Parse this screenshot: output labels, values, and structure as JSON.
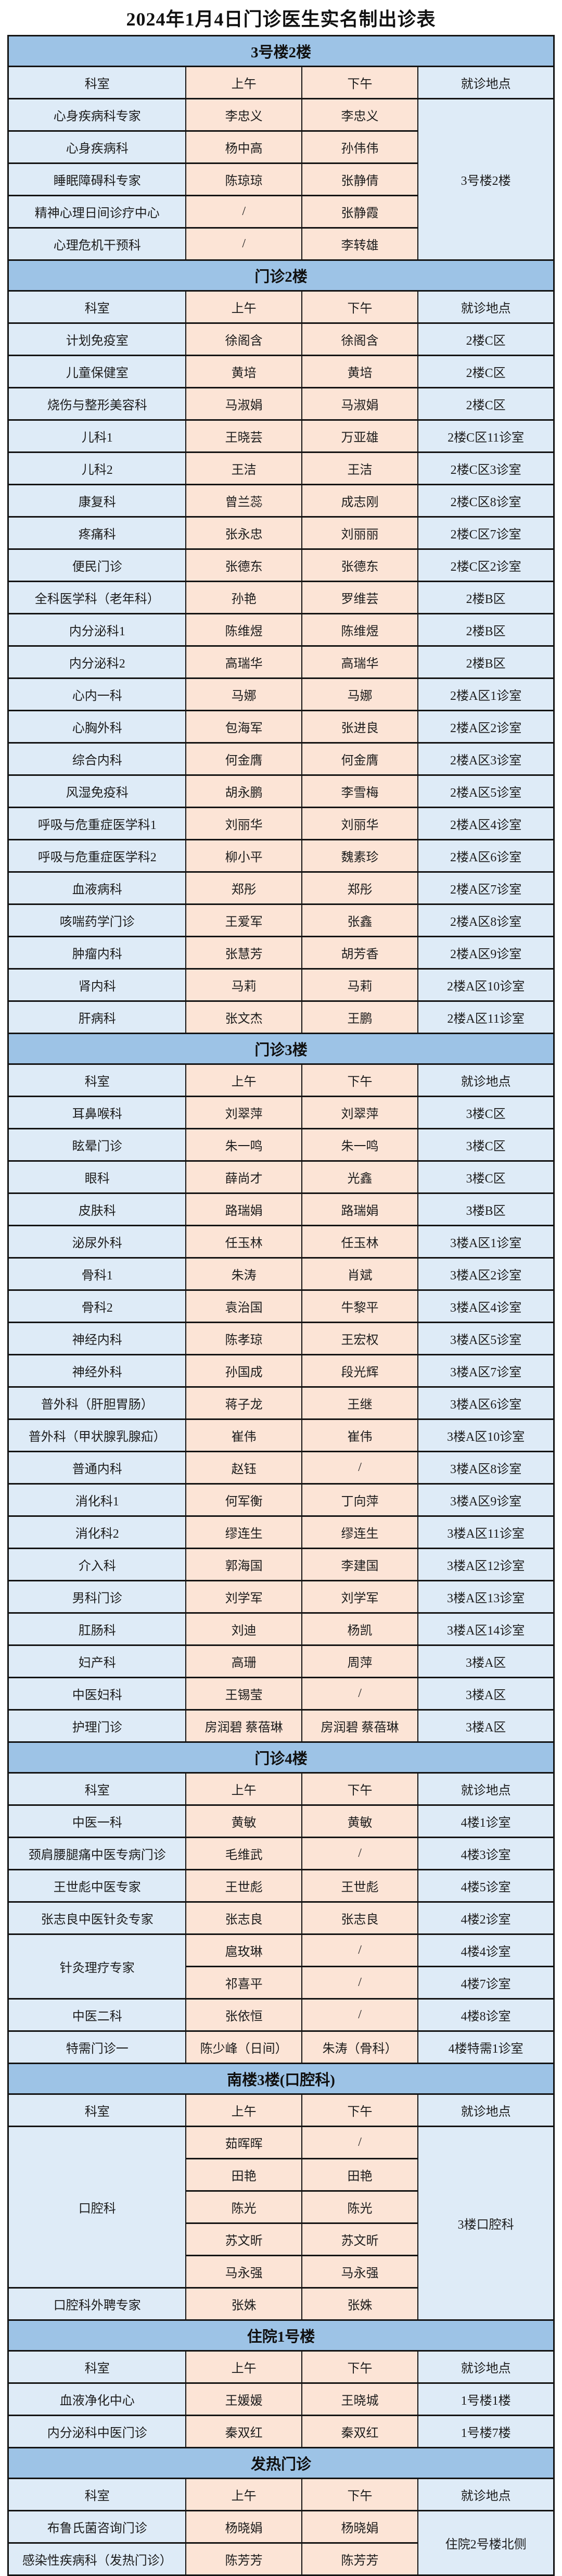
{
  "title": "2024年1月4日门诊医生实名制出诊表",
  "columns": [
    "科室",
    "上午",
    "下午",
    "就诊地点"
  ],
  "colors": {
    "section_band": "#9DC3E6",
    "dept_location_fill": "#DEEBF7",
    "doctor_fill": "#FCE4D6",
    "border": "#131313"
  },
  "sections": [
    {
      "name": "3号楼2楼",
      "rows": [
        {
          "dept": "心身疾病科专家",
          "am": "李忠义",
          "pm": "李忠义",
          "loc": "3号楼2楼",
          "loc_span": 5
        },
        {
          "dept": "心身疾病科",
          "am": "杨中高",
          "pm": "孙伟伟",
          "loc_span": 0
        },
        {
          "dept": "睡眠障碍科专家",
          "am": "陈琼琼",
          "pm": "张静倩",
          "loc_span": 0
        },
        {
          "dept": "精神心理日间诊疗中心",
          "am": "/",
          "pm": "张静霞",
          "loc_span": 0
        },
        {
          "dept": "心理危机干预科",
          "am": "/",
          "pm": "李转雄",
          "loc_span": 0
        }
      ]
    },
    {
      "name": "门诊2楼",
      "rows": [
        {
          "dept": "计划免疫室",
          "am": "徐阁含",
          "pm": "徐阁含",
          "loc": "2楼C区"
        },
        {
          "dept": "儿童保健室",
          "am": "黄培",
          "pm": "黄培",
          "loc": "2楼C区"
        },
        {
          "dept": "烧伤与整形美容科",
          "am": "马淑娟",
          "pm": "马淑娟",
          "loc": "2楼C区"
        },
        {
          "dept": "儿科1",
          "am": "王晓芸",
          "pm": "万亚雄",
          "loc": "2楼C区11诊室"
        },
        {
          "dept": "儿科2",
          "am": "王洁",
          "pm": "王洁",
          "loc": "2楼C区3诊室"
        },
        {
          "dept": "康复科",
          "am": "曾兰蕊",
          "pm": "成志刚",
          "loc": "2楼C区8诊室"
        },
        {
          "dept": "疼痛科",
          "am": "张永忠",
          "pm": "刘丽丽",
          "loc": "2楼C区7诊室"
        },
        {
          "dept": "便民门诊",
          "am": "张德东",
          "pm": "张德东",
          "loc": "2楼C区2诊室"
        },
        {
          "dept": "全科医学科（老年科）",
          "am": "孙艳",
          "pm": "罗维芸",
          "loc": "2楼B区"
        },
        {
          "dept": "内分泌科1",
          "am": "陈维煜",
          "pm": "陈维煜",
          "loc": "2楼B区"
        },
        {
          "dept": "内分泌科2",
          "am": "高瑞华",
          "pm": "高瑞华",
          "loc": "2楼B区"
        },
        {
          "dept": "心内一科",
          "am": "马娜",
          "pm": "马娜",
          "loc": "2楼A区1诊室"
        },
        {
          "dept": "心胸外科",
          "am": "包海军",
          "pm": "张进良",
          "loc": "2楼A区2诊室"
        },
        {
          "dept": "综合内科",
          "am": "何金膺",
          "pm": "何金膺",
          "loc": "2楼A区3诊室"
        },
        {
          "dept": "风湿免疫科",
          "am": "胡永鹏",
          "pm": "李雪梅",
          "loc": "2楼A区5诊室"
        },
        {
          "dept": "呼吸与危重症医学科1",
          "am": "刘丽华",
          "pm": "刘丽华",
          "loc": "2楼A区4诊室"
        },
        {
          "dept": "呼吸与危重症医学科2",
          "am": "柳小平",
          "pm": "魏素珍",
          "loc": "2楼A区6诊室"
        },
        {
          "dept": "血液病科",
          "am": "郑彤",
          "pm": "郑彤",
          "loc": "2楼A区7诊室"
        },
        {
          "dept": "咳喘药学门诊",
          "am": "王爱军",
          "pm": "张鑫",
          "loc": "2楼A区8诊室"
        },
        {
          "dept": "肿瘤内科",
          "am": "张慧芳",
          "pm": "胡芳香",
          "loc": "2楼A区9诊室"
        },
        {
          "dept": "肾内科",
          "am": "马莉",
          "pm": "马莉",
          "loc": "2楼A区10诊室"
        },
        {
          "dept": "肝病科",
          "am": "张文杰",
          "pm": "王鹏",
          "loc": "2楼A区11诊室"
        }
      ]
    },
    {
      "name": "门诊3楼",
      "rows": [
        {
          "dept": "耳鼻喉科",
          "am": "刘翠萍",
          "pm": "刘翠萍",
          "loc": "3楼C区"
        },
        {
          "dept": "眩晕门诊",
          "am": "朱一鸣",
          "pm": "朱一鸣",
          "loc": "3楼C区"
        },
        {
          "dept": "眼科",
          "am": "薛尚才",
          "pm": "光鑫",
          "loc": "3楼C区"
        },
        {
          "dept": "皮肤科",
          "am": "路瑞娟",
          "pm": "路瑞娟",
          "loc": "3楼B区"
        },
        {
          "dept": "泌尿外科",
          "am": "任玉林",
          "pm": "任玉林",
          "loc": "3楼A区1诊室"
        },
        {
          "dept": "骨科1",
          "am": "朱涛",
          "pm": "肖斌",
          "loc": "3楼A区2诊室"
        },
        {
          "dept": "骨科2",
          "am": "袁治国",
          "pm": "牛黎平",
          "loc": "3楼A区4诊室"
        },
        {
          "dept": "神经内科",
          "am": "陈孝琼",
          "pm": "王宏权",
          "loc": "3楼A区5诊室"
        },
        {
          "dept": "神经外科",
          "am": "孙国成",
          "pm": "段光辉",
          "loc": "3楼A区7诊室"
        },
        {
          "dept": "普外科（肝胆胃肠）",
          "am": "蒋子龙",
          "pm": "王继",
          "loc": "3楼A区6诊室"
        },
        {
          "dept": "普外科（甲状腺乳腺疝）",
          "am": "崔伟",
          "pm": "崔伟",
          "loc": "3楼A区10诊室"
        },
        {
          "dept": "普通内科",
          "am": "赵钰",
          "pm": "/",
          "loc": "3楼A区8诊室"
        },
        {
          "dept": "消化科1",
          "am": "何军衡",
          "pm": "丁向萍",
          "loc": "3楼A区9诊室"
        },
        {
          "dept": "消化科2",
          "am": "缪连生",
          "pm": "缪连生",
          "loc": "3楼A区11诊室"
        },
        {
          "dept": "介入科",
          "am": "郭海国",
          "pm": "李建国",
          "loc": "3楼A区12诊室"
        },
        {
          "dept": "男科门诊",
          "am": "刘学军",
          "pm": "刘学军",
          "loc": "3楼A区13诊室"
        },
        {
          "dept": "肛肠科",
          "am": "刘迪",
          "pm": "杨凯",
          "loc": "3楼A区14诊室"
        },
        {
          "dept": "妇产科",
          "am": "高珊",
          "pm": "周萍",
          "loc": "3楼A区"
        },
        {
          "dept": "中医妇科",
          "am": "王锡莹",
          "pm": "/",
          "loc": "3楼A区"
        },
        {
          "dept": "护理门诊",
          "am": "房润碧 蔡蓓琳",
          "pm": "房润碧 蔡蓓琳",
          "loc": "3楼A区"
        }
      ]
    },
    {
      "name": "门诊4楼",
      "rows": [
        {
          "dept": "中医一科",
          "am": "黄敏",
          "pm": "黄敏",
          "loc": "4楼1诊室"
        },
        {
          "dept": "颈肩腰腿痛中医专病门诊",
          "am": "毛维武",
          "pm": "/",
          "loc": "4楼3诊室"
        },
        {
          "dept": "王世彪中医专家",
          "am": "王世彪",
          "pm": "王世彪",
          "loc": "4楼5诊室"
        },
        {
          "dept": "张志良中医针灸专家",
          "am": "张志良",
          "pm": "张志良",
          "loc": "4楼2诊室"
        },
        {
          "dept": "针灸理疗专家",
          "dept_span": 2,
          "am": "扈玫琳",
          "pm": "/",
          "loc": "4楼4诊室"
        },
        {
          "dept_span": 0,
          "am": "祁喜平",
          "pm": "/",
          "loc": "4楼7诊室"
        },
        {
          "dept": "中医二科",
          "am": "张依恒",
          "pm": "/",
          "loc": "4楼8诊室"
        },
        {
          "dept": "特需门诊一",
          "am": "陈少峰（日间）",
          "pm": "朱涛（骨科）",
          "loc": "4楼特需1诊室"
        }
      ]
    },
    {
      "name": "南楼3楼(口腔科)",
      "rows": [
        {
          "dept": "口腔科",
          "dept_span": 5,
          "am": "茹晖晖",
          "pm": "/",
          "loc": "3楼口腔科",
          "loc_span": 6
        },
        {
          "dept_span": 0,
          "am": "田艳",
          "pm": "田艳",
          "loc_span": 0
        },
        {
          "dept_span": 0,
          "am": "陈光",
          "pm": "陈光",
          "loc_span": 0
        },
        {
          "dept_span": 0,
          "am": "苏文昕",
          "pm": "苏文昕",
          "loc_span": 0
        },
        {
          "dept_span": 0,
          "am": "马永强",
          "pm": "马永强",
          "loc_span": 0
        },
        {
          "dept": "口腔科外聘专家",
          "am": "张姝",
          "pm": "张姝",
          "loc_span": 0
        }
      ]
    },
    {
      "name": "住院1号楼",
      "rows": [
        {
          "dept": "血液净化中心",
          "am": "王媛媛",
          "pm": "王晓城",
          "loc": "1号楼1楼"
        },
        {
          "dept": "内分泌科中医门诊",
          "am": "秦双红",
          "pm": "秦双红",
          "loc": "1号楼7楼"
        }
      ]
    },
    {
      "name": "发热门诊",
      "rows": [
        {
          "dept": "布鲁氏菌咨询门诊",
          "am": "杨晓娟",
          "pm": "杨晓娟",
          "loc": "住院2号楼北侧",
          "loc_span": 2
        },
        {
          "dept": "感染性疾病科（发热门诊）",
          "am": "陈芳芳",
          "pm": "陈芳芳",
          "loc_span": 0
        }
      ]
    }
  ]
}
